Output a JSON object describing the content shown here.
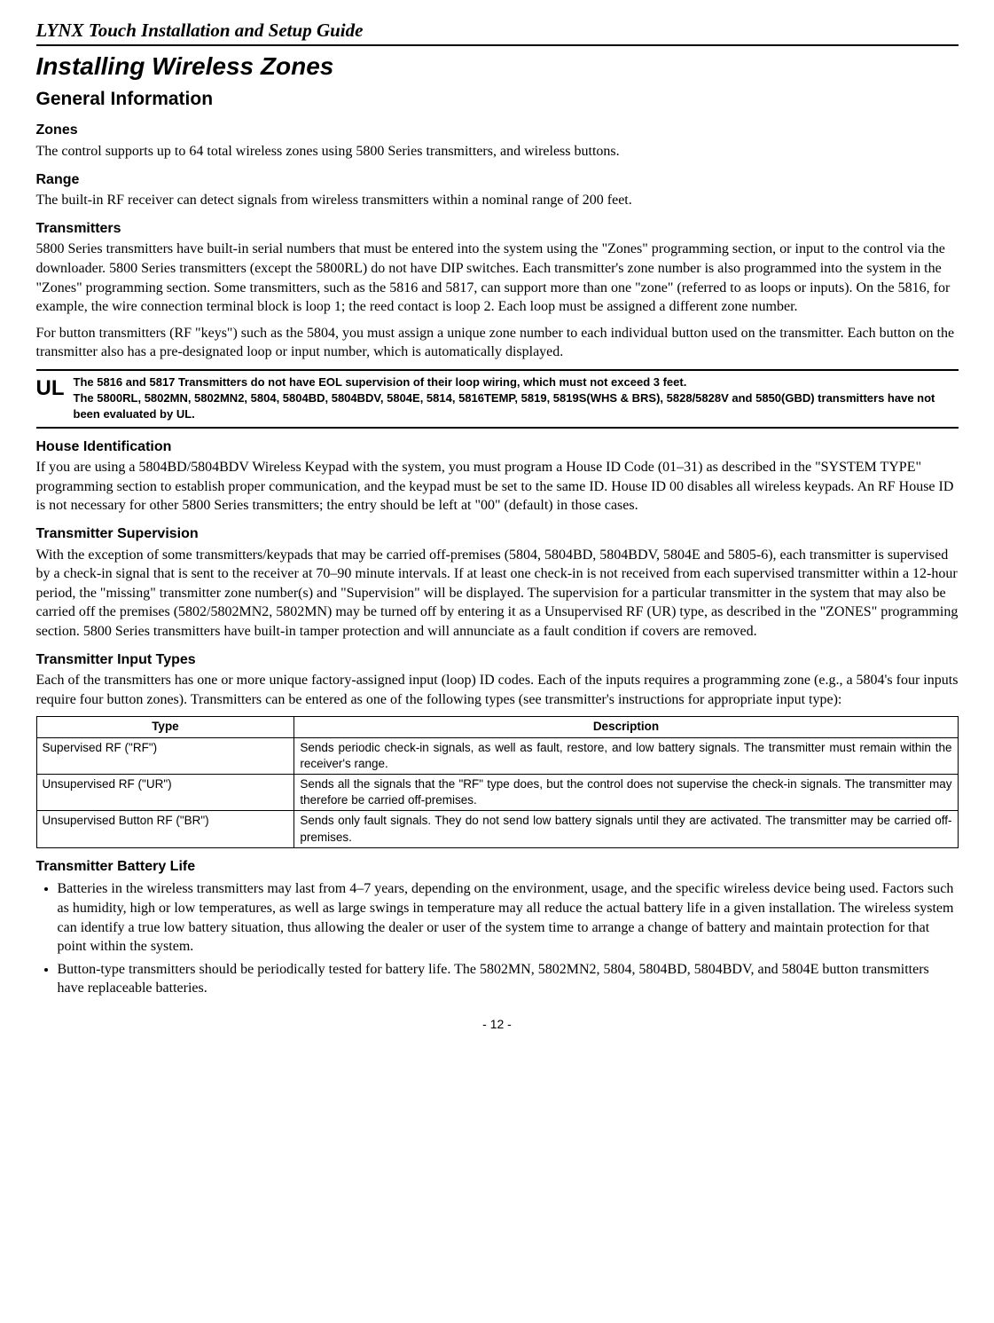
{
  "header": "LYNX Touch Installation and Setup Guide",
  "title": "Installing Wireless Zones",
  "section": "General Information",
  "zones": {
    "heading": "Zones",
    "text": "The control supports up to 64 total wireless zones using 5800 Series transmitters, and wireless buttons."
  },
  "range": {
    "heading": "Range",
    "text": "The built-in RF receiver can detect signals from wireless transmitters within a nominal range of 200 feet."
  },
  "transmitters": {
    "heading": "Transmitters",
    "p1": "5800 Series transmitters have built-in serial numbers that must be entered into the system using the \"Zones\" programming section, or input to the control via the downloader. 5800 Series transmitters (except the 5800RL) do not have DIP switches. Each transmitter's zone number is also programmed into the system in the \"Zones\" programming section. Some transmitters, such as the 5816 and 5817, can support more than one \"zone\" (referred to as loops or inputs). On the 5816, for example, the wire connection terminal block is loop 1; the reed contact is loop 2. Each loop must be assigned a different zone number.",
    "p2": "For button transmitters (RF \"keys\") such as the 5804, you must assign a unique zone number to each individual button used on the transmitter.  Each button on the transmitter also has a pre-designated loop or input number, which is automatically displayed."
  },
  "ul": {
    "label": "UL",
    "line1": "The 5816 and 5817 Transmitters do not have EOL supervision of their loop wiring, which must not exceed 3 feet.",
    "line2": "The 5800RL, 5802MN, 5802MN2, 5804, 5804BD, 5804BDV, 5804E, 5814, 5816TEMP, 5819, 5819S(WHS & BRS), 5828/5828V and 5850(GBD) transmitters have not been evaluated by UL."
  },
  "house": {
    "heading": "House Identification",
    "text": "If you are using a 5804BD/5804BDV Wireless Keypad with the system, you must program a House ID Code (01–31) as described in the \"SYSTEM TYPE\" programming section to establish proper communication, and the keypad must be set to the same ID. House ID 00 disables all wireless keypads. An RF House ID is not necessary for other 5800 Series transmitters; the entry should be left at \"00\" (default) in those cases."
  },
  "supervision": {
    "heading": "Transmitter Supervision",
    "text": "With the exception of some transmitters/keypads that may be carried off-premises (5804, 5804BD, 5804BDV, 5804E and 5805-6), each transmitter is supervised by a check-in signal that is sent to the receiver at 70–90 minute intervals. If at least one check-in is not received from each supervised transmitter within a 12-hour period, the \"missing\" transmitter zone number(s) and \"Supervision\" will be displayed. The supervision for a particular transmitter in the system that may also be carried off the premises (5802/5802MN2, 5802MN) may be turned off by entering it as a Unsupervised RF (UR) type, as described in the \"ZONES\" programming section. 5800 Series transmitters have built-in tamper protection and will annunciate as a fault condition if covers are removed."
  },
  "inputTypes": {
    "heading": "Transmitter Input Types",
    "intro": "Each of the transmitters has one or more unique factory-assigned input (loop) ID codes. Each of the inputs requires a programming zone (e.g., a 5804's four inputs require four button zones). Transmitters can be entered as one of the following types (see transmitter's instructions for appropriate input type):",
    "table": {
      "headers": {
        "type": "Type",
        "desc": "Description"
      },
      "rows": [
        {
          "type": "Supervised RF (\"RF\")",
          "desc": "Sends periodic check-in signals, as well as fault, restore, and low battery signals. The transmitter must remain within the receiver's range."
        },
        {
          "type": "Unsupervised RF (\"UR\")",
          "desc": "Sends all the signals that the \"RF\" type does, but the control does not supervise the check-in signals. The transmitter may therefore be carried off-premises."
        },
        {
          "type": "Unsupervised Button RF (\"BR\")",
          "desc": "Sends only fault signals. They do not send low battery signals until they are activated.  The transmitter may be carried off-premises."
        }
      ]
    }
  },
  "battery": {
    "heading": "Transmitter Battery Life",
    "bullets": [
      "Batteries in the wireless transmitters may last from 4–7 years, depending on the environment, usage, and the specific wireless device being used.  Factors such as humidity, high or low temperatures, as well as large swings in temperature may all reduce the actual battery life in a given installation. The wireless system can identify a true low battery situation, thus allowing the dealer or user of the system time to arrange a change of battery and maintain protection for that point within the system.",
      "Button-type transmitters should be periodically tested for battery life. The 5802MN, 5802MN2, 5804, 5804BD, 5804BDV, and 5804E button transmitters have replaceable batteries."
    ]
  },
  "footer": "- 12 -"
}
